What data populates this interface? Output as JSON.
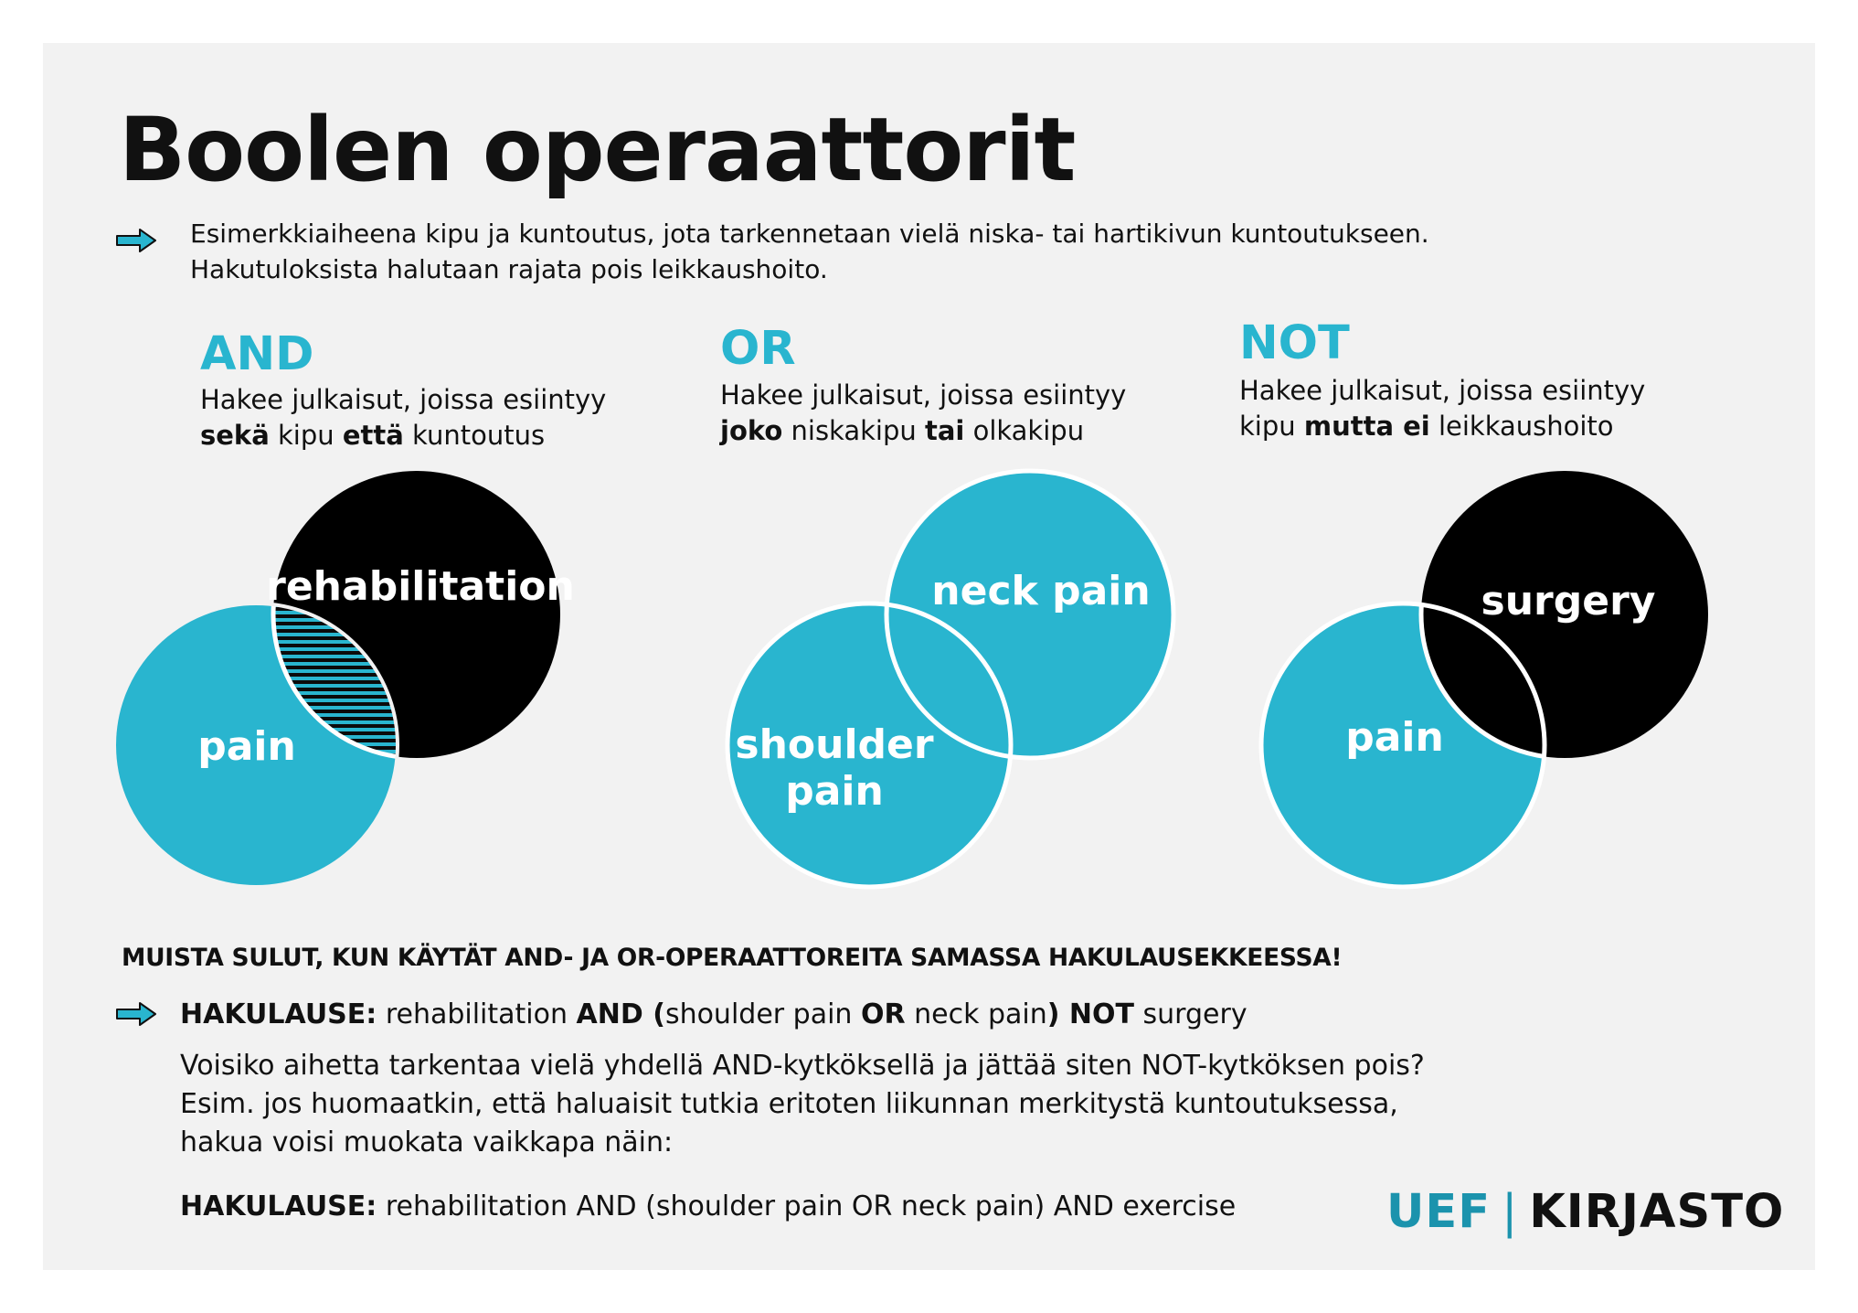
{
  "title": "Boolen operaattorit",
  "intro": {
    "line1": "Esimerkkiaiheena kipu ja kuntoutus, jota tarkennetaan vielä niska- tai hartikivun kuntoutukseen.",
    "line2": "Hakutuloksista halutaan rajata pois leikkaushoito."
  },
  "operators": {
    "and": {
      "heading": "AND",
      "desc_line1": "Hakee julkaisut, joissa esiintyy",
      "b1": "sekä",
      "t1": " kipu ",
      "b2": "että",
      "t2": " kuntoutus",
      "left_circle": "pain",
      "right_circle": "rehabilitation"
    },
    "or": {
      "heading": "OR",
      "desc_line1": "Hakee julkaisut, joissa esiintyy",
      "b1": "joko",
      "t1": " niskakipu ",
      "b2": "tai",
      "t2": " olkakipu",
      "left_circle_line1": "shoulder",
      "left_circle_line2": "pain",
      "right_circle": "neck pain"
    },
    "not": {
      "heading": "NOT",
      "desc_line1": "Hakee julkaisut, joissa esiintyy",
      "t0": "kipu ",
      "b1": "mutta ei",
      "t1": " leikkaushoito",
      "left_circle": "pain",
      "right_circle": "surgery"
    }
  },
  "reminder": "MUISTA SULUT, KUN KÄYTÄT AND- JA OR-OPERAATTOREITA SAMASSA HAKULAUSEKKEESSA!",
  "query1": {
    "label": "HAKULAUSE:",
    "p1": " rehabilitation ",
    "b1": "AND (",
    "p2": "shoulder pain ",
    "b2": "OR",
    "p3": " neck pain",
    "b3": ") NOT",
    "p4": " surgery"
  },
  "paragraph": {
    "line1": "Voisiko aihetta tarkentaa vielä yhdellä AND-kytköksellä ja jättää siten NOT-kytköksen pois?",
    "line2": "Esim. jos huomaatkin, että haluaisit tutkia eritoten liikunnan merkitystä kuntoutuksessa,",
    "line3": "hakua voisi muokata vaikkapa näin:"
  },
  "query2": {
    "label": "HAKULAUSE:",
    "text": " rehabilitation AND (shoulder pain OR neck pain) AND exercise"
  },
  "brand": {
    "uef": "UEF",
    "separator": "|",
    "kirjasto": "KIRJASTO"
  },
  "colors": {
    "accent": "#29b5cf",
    "black": "#000000",
    "panel": "#f2f2f2",
    "brand_uef": "#1b93ad"
  },
  "icons": {
    "bullet_arrow": "arrow-right-icon"
  }
}
